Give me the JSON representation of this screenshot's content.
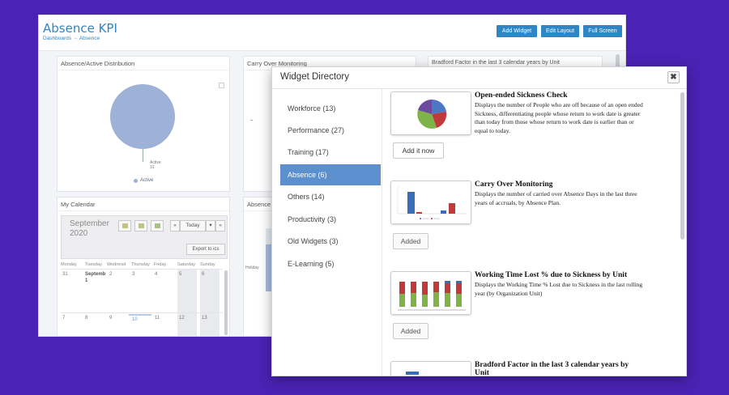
{
  "dashboard": {
    "title": "Absence KPI",
    "breadcrumb": {
      "root": "Dashboards",
      "sep": "→",
      "current": "Absence"
    },
    "buttons": {
      "add_widget": "Add Widget",
      "edit_layout": "Edit Layout",
      "full_screen": "Full Screen"
    },
    "cards": {
      "distribution": {
        "title": "Absence/Active Distribution",
        "slice_label": "Active",
        "slice_value": "31",
        "legend": "Active"
      },
      "carry_over": {
        "title": "Carry Over Monitoring"
      },
      "bradford": {
        "title": "Bradford Factor in the last 3 calendar years by Unit"
      },
      "calendar": {
        "title": "My Calendar",
        "month": "September",
        "year": "2020",
        "today": "Today",
        "prev": "«",
        "next": "»",
        "dropdown": "▾",
        "export": "Export to ics",
        "daynames": [
          "Monday",
          "Tuesday",
          "Wednesd",
          "Thursday",
          "Friday",
          "Saturday",
          "Sunday"
        ],
        "row1": [
          "31",
          "Septemb",
          "2",
          "3",
          "4",
          "5",
          "6"
        ],
        "row1_extra": "1",
        "row2": [
          "7",
          "8",
          "9",
          "10",
          "11",
          "12",
          "13"
        ]
      },
      "absence_by": {
        "title": "Absence B",
        "axis_label": "Holiday"
      }
    }
  },
  "modal": {
    "title": "Widget Directory",
    "close": "✖",
    "categories": [
      {
        "label": "Workforce (13)"
      },
      {
        "label": "Performance (27)"
      },
      {
        "label": "Training (17)"
      },
      {
        "label": "Absence (6)"
      },
      {
        "label": "Others (14)"
      },
      {
        "label": "Productivity (3)"
      },
      {
        "label": "Old Widgets (3)"
      },
      {
        "label": "E-Learning (5)"
      }
    ],
    "active_category": "Absence (6)",
    "widgets": [
      {
        "title": "Open-ended Sickness Check",
        "description": "Displays the number of People who are off because of an open ended Sickness, differentiating people whose return to work date is greater than today from those whose return to work date is earlier than or equal to today.",
        "button": "Add it now"
      },
      {
        "title": "Carry Over Monitoring",
        "description": "Displays the number of carried over Absence Days in the last three years of accruals, by Absence Plan.",
        "button": "Added"
      },
      {
        "title": "Working Time Lost % due to Sickness by Unit",
        "description": "Displays the Working Time % Lost due to Sickness in the last rolling year (by Organization Unit)",
        "button": "Added"
      },
      {
        "title": "Bradford Factor in the last 3 calendar years by Unit",
        "description": "",
        "button": ""
      }
    ]
  },
  "colors": {
    "background": "#4a22b4",
    "accent": "#2f86c5",
    "active_category": "#5b8fce",
    "pie_blue": "#4a78c2",
    "pie_red": "#c0393b",
    "pie_green": "#7fb34a",
    "pie_purple": "#6b4aa0"
  }
}
